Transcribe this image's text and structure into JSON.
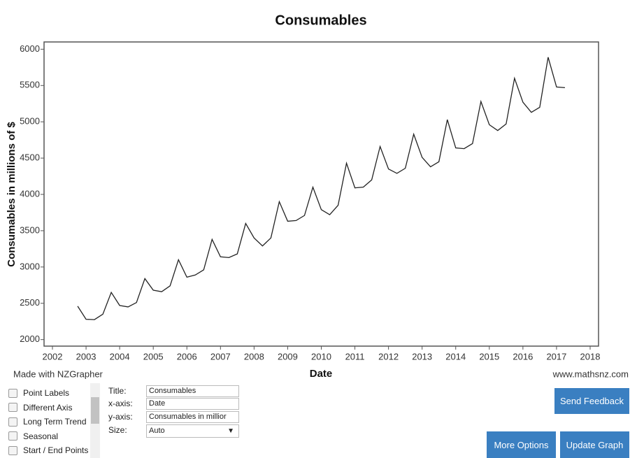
{
  "chart_data": {
    "type": "line",
    "title": "Consumables",
    "x_label": "Date",
    "y_label": "Consumables in millions of $",
    "color": "#222222",
    "x": [
      2002.75,
      2003,
      2003.25,
      2003.5,
      2003.75,
      2004,
      2004.25,
      2004.5,
      2004.75,
      2005,
      2005.25,
      2005.5,
      2005.75,
      2006,
      2006.25,
      2006.5,
      2006.75,
      2007,
      2007.25,
      2007.5,
      2007.75,
      2008,
      2008.25,
      2008.5,
      2008.75,
      2009,
      2009.25,
      2009.5,
      2009.75,
      2010,
      2010.25,
      2010.5,
      2010.75,
      2011,
      2011.25,
      2011.5,
      2011.75,
      2012,
      2012.25,
      2012.5,
      2012.75,
      2013,
      2013.25,
      2013.5,
      2013.75,
      2014,
      2014.25,
      2014.5,
      2014.75,
      2015,
      2015.25,
      2015.5,
      2015.75,
      2016,
      2016.25,
      2016.5,
      2016.75,
      2017,
      2017.25
    ],
    "values": [
      2460,
      2280,
      2275,
      2350,
      2650,
      2470,
      2450,
      2510,
      2840,
      2680,
      2660,
      2740,
      3100,
      2860,
      2890,
      2960,
      3380,
      3140,
      3130,
      3180,
      3600,
      3400,
      3290,
      3400,
      3900,
      3630,
      3640,
      3710,
      4100,
      3790,
      3720,
      3850,
      4430,
      4090,
      4100,
      4200,
      4660,
      4350,
      4290,
      4360,
      4830,
      4510,
      4380,
      4450,
      5030,
      4640,
      4630,
      4700,
      5280,
      4960,
      4880,
      4970,
      5600,
      5270,
      5130,
      5200,
      5890,
      5480,
      5470
    ],
    "xlim": [
      2001.75,
      2018.25
    ],
    "xticks": [
      2002,
      2003,
      2004,
      2005,
      2006,
      2007,
      2008,
      2009,
      2010,
      2011,
      2012,
      2013,
      2014,
      2015,
      2016,
      2017,
      2018
    ],
    "ylim": [
      1910,
      6100
    ],
    "yticks": [
      2000,
      2500,
      3000,
      3500,
      4000,
      4500,
      5000,
      5500,
      6000
    ]
  },
  "ui": {
    "credit_left": "Made with NZGrapher",
    "credit_right": "www.mathsnz.com",
    "options": [
      "Point Labels",
      "Different Axis",
      "Long Term Trend",
      "Seasonal",
      "Start / End Points"
    ],
    "fields": [
      {
        "label": "Title:",
        "value": "Consumables"
      },
      {
        "label": "x-axis:",
        "value": "Date"
      },
      {
        "label": "y-axis:",
        "value": "Consumables in millior"
      },
      {
        "label": "Size:",
        "value": "Auto"
      }
    ],
    "buttons": [
      "Send Feedback",
      "More Options",
      "Update Graph"
    ]
  }
}
